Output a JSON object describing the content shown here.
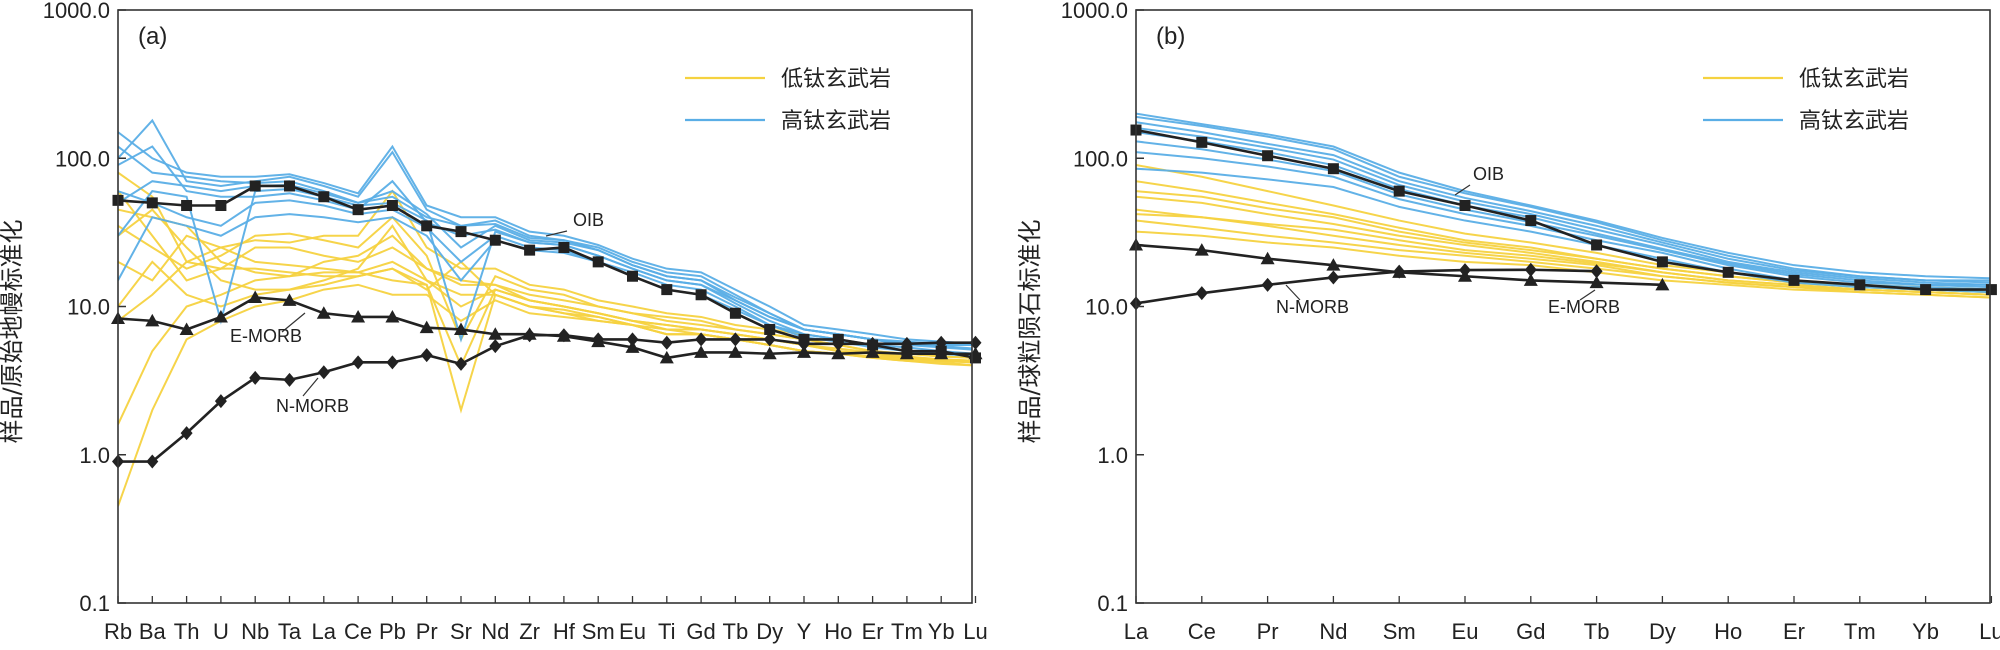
{
  "colors": {
    "low_ti": "#f5d240",
    "high_ti": "#5aaee6",
    "reference": "#222222",
    "axis": "#333333"
  },
  "chart_data": [
    {
      "type": "line",
      "panel_label": "(a)",
      "ylabel": "样品/原始地幔标准化",
      "yscale": "log",
      "ylim": [
        0.1,
        1000.0
      ],
      "yticks": [
        "0.1",
        "1.0",
        "10.0",
        "100.0",
        "1000.0"
      ],
      "categories": [
        "Rb",
        "Ba",
        "Th",
        "U",
        "Nb",
        "Ta",
        "La",
        "Ce",
        "Pb",
        "Pr",
        "Sr",
        "Nd",
        "Zr",
        "Hf",
        "Sm",
        "Eu",
        "Ti",
        "Gd",
        "Tb",
        "Dy",
        "Y",
        "Ho",
        "Er",
        "Tm",
        "Yb",
        "Lu"
      ],
      "legend": [
        {
          "name": "低钛玄武岩",
          "color": "#f5d240"
        },
        {
          "name": "高钛玄武岩",
          "color": "#5aaee6"
        }
      ],
      "reference_series": [
        {
          "name": "OIB",
          "marker": "square",
          "values": [
            52,
            50,
            48,
            48,
            65,
            65,
            55,
            45,
            48,
            35,
            32,
            28,
            24,
            25,
            20,
            16,
            13,
            12,
            9,
            7,
            6,
            6,
            5.5,
            5,
            5,
            4.5
          ]
        },
        {
          "name": "E-MORB",
          "marker": "triangle",
          "values": [
            8.3,
            8,
            7,
            8.5,
            11.5,
            11,
            9,
            8.5,
            8.5,
            7.2,
            7,
            6.5,
            6.5,
            6.3,
            5.8,
            5.3,
            4.5,
            4.9,
            4.9,
            4.8,
            4.9,
            4.8,
            4.9,
            4.8,
            4.8,
            4.8
          ]
        },
        {
          "name": "N-MORB",
          "marker": "diamond",
          "values": [
            0.9,
            0.9,
            1.4,
            2.3,
            3.3,
            3.2,
            3.6,
            4.2,
            4.2,
            4.7,
            4.1,
            5.4,
            6.4,
            6.4,
            6,
            6,
            5.7,
            6,
            6,
            6,
            5.6,
            5.6,
            5.6,
            5.6,
            5.7,
            5.7
          ]
        }
      ],
      "series_groups": [
        {
          "name": "低钛玄武岩",
          "series": [
            [
              45,
              40,
              35,
              20,
              17,
              16,
              20,
              22,
              30,
              18,
              15,
              14,
              11,
              10,
              9,
              8,
              7.5,
              7,
              6.5,
              6,
              5.5,
              5,
              4.8,
              4.5,
              4.3,
              4.2
            ],
            [
              30,
              45,
              25,
              15,
              13,
              13,
              15,
              18,
              35,
              15,
              12,
              12,
              10,
              9,
              8,
              7.5,
              7,
              6.5,
              6,
              5.5,
              5,
              4.8,
              4.5,
              4.3,
              4.1,
              4
            ],
            [
              60,
              30,
              15,
              18,
              25,
              25,
              22,
              20,
              25,
              18,
              14,
              14,
              12,
              11,
              10,
              9,
              8.5,
              8,
              7,
              6.5,
              6,
              5.5,
              5,
              4.8,
              4.6,
              4.5
            ],
            [
              20,
              15,
              30,
              25,
              20,
              19,
              18,
              17,
              15,
              14,
              2,
              12,
              10,
              9.5,
              8.5,
              7.5,
              6.5,
              6.5,
              6,
              5.5,
              5,
              4.8,
              4.5,
              4.3,
              4.2,
              4
            ],
            [
              1.6,
              5,
              10,
              12,
              15,
              16,
              17,
              17,
              20,
              15,
              10,
              13,
              11,
              10,
              9,
              8,
              7,
              7,
              6.5,
              6,
              5.5,
              5,
              4.8,
              4.5,
              4.4,
              4.3
            ],
            [
              0.45,
              2,
              6,
              8,
              10,
              11,
              13,
              14,
              12,
              12,
              8,
              11,
              9,
              8.5,
              8,
              7.5,
              6.5,
              6.5,
              6,
              5.5,
              5,
              4.8,
              4.6,
              4.4,
              4.3,
              4.2
            ],
            [
              80,
              55,
              20,
              25,
              28,
              27,
              30,
              30,
              60,
              25,
              18,
              18,
              14,
              13,
              11,
              10,
              9,
              8.5,
              7.5,
              7,
              6.5,
              6,
              5.5,
              5,
              4.8,
              4.7
            ],
            [
              10,
              20,
              12,
              10,
              12,
              13,
              14,
              16,
              18,
              13,
              20,
              12,
              10,
              9,
              8.5,
              7.5,
              6.5,
              6.5,
              6,
              5.5,
              5,
              4.8,
              4.6,
              4.5,
              4.3,
              4.2
            ],
            [
              35,
              25,
              18,
              22,
              30,
              31,
              28,
              25,
              40,
              22,
              6,
              16,
              13,
              12,
              10,
              9,
              8,
              7.5,
              7,
              6.5,
              6,
              5.5,
              5,
              4.8,
              4.6,
              4.5
            ],
            [
              8,
              12,
              20,
              18,
              18,
              17,
              16,
              16,
              18,
              14,
              4,
              13,
              11,
              10,
              9,
              8,
              7.5,
              7,
              6.5,
              6,
              5.5,
              5.2,
              4.9,
              4.6,
              4.4,
              4.3
            ]
          ]
        },
        {
          "name": "高钛玄武岩",
          "series": [
            [
              100,
              180,
              70,
              65,
              70,
              75,
              65,
              55,
              110,
              45,
              35,
              38,
              30,
              28,
              25,
              20,
              17,
              16,
              12,
              9,
              7,
              6.5,
              6,
              5.5,
              5.5,
              5.5
            ],
            [
              120,
              80,
              75,
              70,
              68,
              70,
              60,
              50,
              60,
              42,
              25,
              35,
              28,
              27,
              24,
              19,
              16,
              15,
              11,
              8.5,
              7,
              6.5,
              6,
              5.8,
              5.6,
              5.5
            ],
            [
              30,
              60,
              55,
              8,
              60,
              62,
              55,
              48,
              50,
              38,
              6,
              32,
              27,
              26,
              22,
              18,
              15,
              14,
              10.5,
              8,
              6.5,
              6,
              5.5,
              5.3,
              5,
              4.8
            ],
            [
              60,
              50,
              40,
              35,
              50,
              52,
              48,
              42,
              45,
              34,
              20,
              30,
              25,
              24,
              20,
              17,
              14,
              13,
              10,
              7.5,
              6.5,
              6,
              5.5,
              5,
              4.8,
              4.7
            ],
            [
              150,
              100,
              80,
              75,
              75,
              78,
              68,
              58,
              120,
              48,
              40,
              40,
              32,
              30,
              26,
              21,
              18,
              17,
              13,
              10,
              7.5,
              7,
              6.5,
              6,
              5.8,
              5.6
            ],
            [
              90,
              120,
              60,
              55,
              55,
              58,
              52,
              45,
              70,
              37,
              30,
              33,
              27,
              26,
              22,
              18,
              15,
              14,
              11,
              8.5,
              7,
              6.5,
              6,
              5.5,
              5.3,
              5.1
            ],
            [
              15,
              40,
              35,
              30,
              40,
              42,
              40,
              37,
              40,
              30,
              15,
              28,
              24,
              23,
              20,
              16,
              13,
              12,
              9.5,
              7.5,
              6.2,
              5.8,
              5.3,
              5,
              4.8,
              4.6
            ],
            [
              50,
              70,
              65,
              60,
              65,
              66,
              58,
              50,
              55,
              40,
              35,
              36,
              29,
              28,
              24,
              19,
              16,
              15,
              11.5,
              9,
              7,
              6.5,
              6,
              5.6,
              5.4,
              5.2
            ]
          ]
        }
      ],
      "annotations": [
        "OIB",
        "E-MORB",
        "N-MORB"
      ]
    },
    {
      "type": "line",
      "panel_label": "(b)",
      "ylabel": "样品/球粒陨石标准化",
      "yscale": "log",
      "ylim": [
        0.1,
        1000.0
      ],
      "yticks": [
        "0.1",
        "1.0",
        "10.0",
        "100.0",
        "1000.0"
      ],
      "categories": [
        "La",
        "Ce",
        "Pr",
        "Nd",
        "Sm",
        "Eu",
        "Gd",
        "Tb",
        "Dy",
        "Ho",
        "Er",
        "Tm",
        "Yb",
        "Lu"
      ],
      "legend": [
        {
          "name": "低钛玄武岩",
          "color": "#f5d240"
        },
        {
          "name": "高钛玄武岩",
          "color": "#5aaee6"
        }
      ],
      "reference_series": [
        {
          "name": "OIB",
          "marker": "square",
          "values": [
            155,
            128,
            104,
            85,
            60,
            48,
            38,
            26,
            20,
            17,
            15,
            14,
            13,
            13
          ]
        },
        {
          "name": "E-MORB",
          "marker": "triangle",
          "values": [
            26,
            24,
            21,
            19,
            17,
            16,
            15,
            14.5,
            14,
            null,
            null,
            null,
            null,
            null
          ]
        },
        {
          "name": "N-MORB",
          "marker": "diamond",
          "values": [
            10.5,
            12.3,
            14,
            15.7,
            17.2,
            17.6,
            17.7,
            17.3,
            null,
            null,
            null,
            null,
            null,
            null
          ]
        }
      ],
      "series_groups": [
        {
          "name": "低钛玄武岩",
          "series": [
            [
              70,
              60,
              50,
              42,
              34,
              28,
              25,
              21,
              18,
              16,
              14.5,
              13.5,
              13,
              12.5
            ],
            [
              55,
              50,
              42,
              36,
              30,
              26,
              23,
              20,
              17,
              15,
              14,
              13,
              12.5,
              12
            ],
            [
              45,
              40,
              35,
              30,
              26,
              23,
              21,
              19,
              16,
              14.5,
              13.5,
              12.5,
              12,
              11.5
            ],
            [
              38,
              34,
              30,
              27,
              24,
              22,
              20,
              18,
              16,
              14.5,
              13.5,
              13,
              12.5,
              12
            ],
            [
              90,
              75,
              60,
              48,
              38,
              31,
              27,
              23,
              19,
              17,
              15,
              14,
              13.5,
              13
            ],
            [
              32,
              30,
              27,
              25,
              22,
              20,
              19,
              17,
              15,
              14,
              13,
              12.5,
              12,
              11.5
            ],
            [
              60,
              55,
              46,
              40,
              32,
              27,
              24,
              21,
              18,
              16,
              14.5,
              13.5,
              13,
              12.5
            ],
            [
              42,
              40,
              36,
              33,
              28,
              24,
              22,
              19.5,
              17,
              15,
              14,
              13,
              12.5,
              12
            ]
          ]
        },
        {
          "name": "高钛玄武岩",
          "series": [
            [
              190,
              165,
              140,
              115,
              75,
              58,
              47,
              37,
              28,
              22,
              18,
              16,
              15,
              15
            ],
            [
              175,
              150,
              125,
              105,
              70,
              54,
              44,
              35,
              27,
              21,
              17.5,
              16,
              15,
              14.5
            ],
            [
              160,
              140,
              118,
              98,
              66,
              51,
              42,
              33,
              26,
              20,
              17,
              15.5,
              14.5,
              14
            ],
            [
              130,
              115,
              98,
              82,
              57,
              45,
              37,
              30,
              24,
              19,
              16,
              14.5,
              14,
              13.5
            ],
            [
              110,
              100,
              88,
              75,
              53,
              42,
              35,
              28,
              23,
              18,
              15,
              14,
              13.5,
              13
            ],
            [
              85,
              80,
              72,
              64,
              47,
              38,
              32,
              26,
              21,
              17,
              14.5,
              13.5,
              13,
              12.5
            ],
            [
              150,
              130,
              110,
              90,
              62,
              48,
              40,
              31,
              24.5,
              19.5,
              16.5,
              15,
              14,
              14
            ],
            [
              200,
              170,
              145,
              120,
              80,
              60,
              48,
              38,
              29,
              23,
              19,
              17,
              16,
              15.5
            ]
          ]
        }
      ],
      "annotations": [
        "OIB",
        "E-MORB",
        "N-MORB"
      ]
    }
  ]
}
